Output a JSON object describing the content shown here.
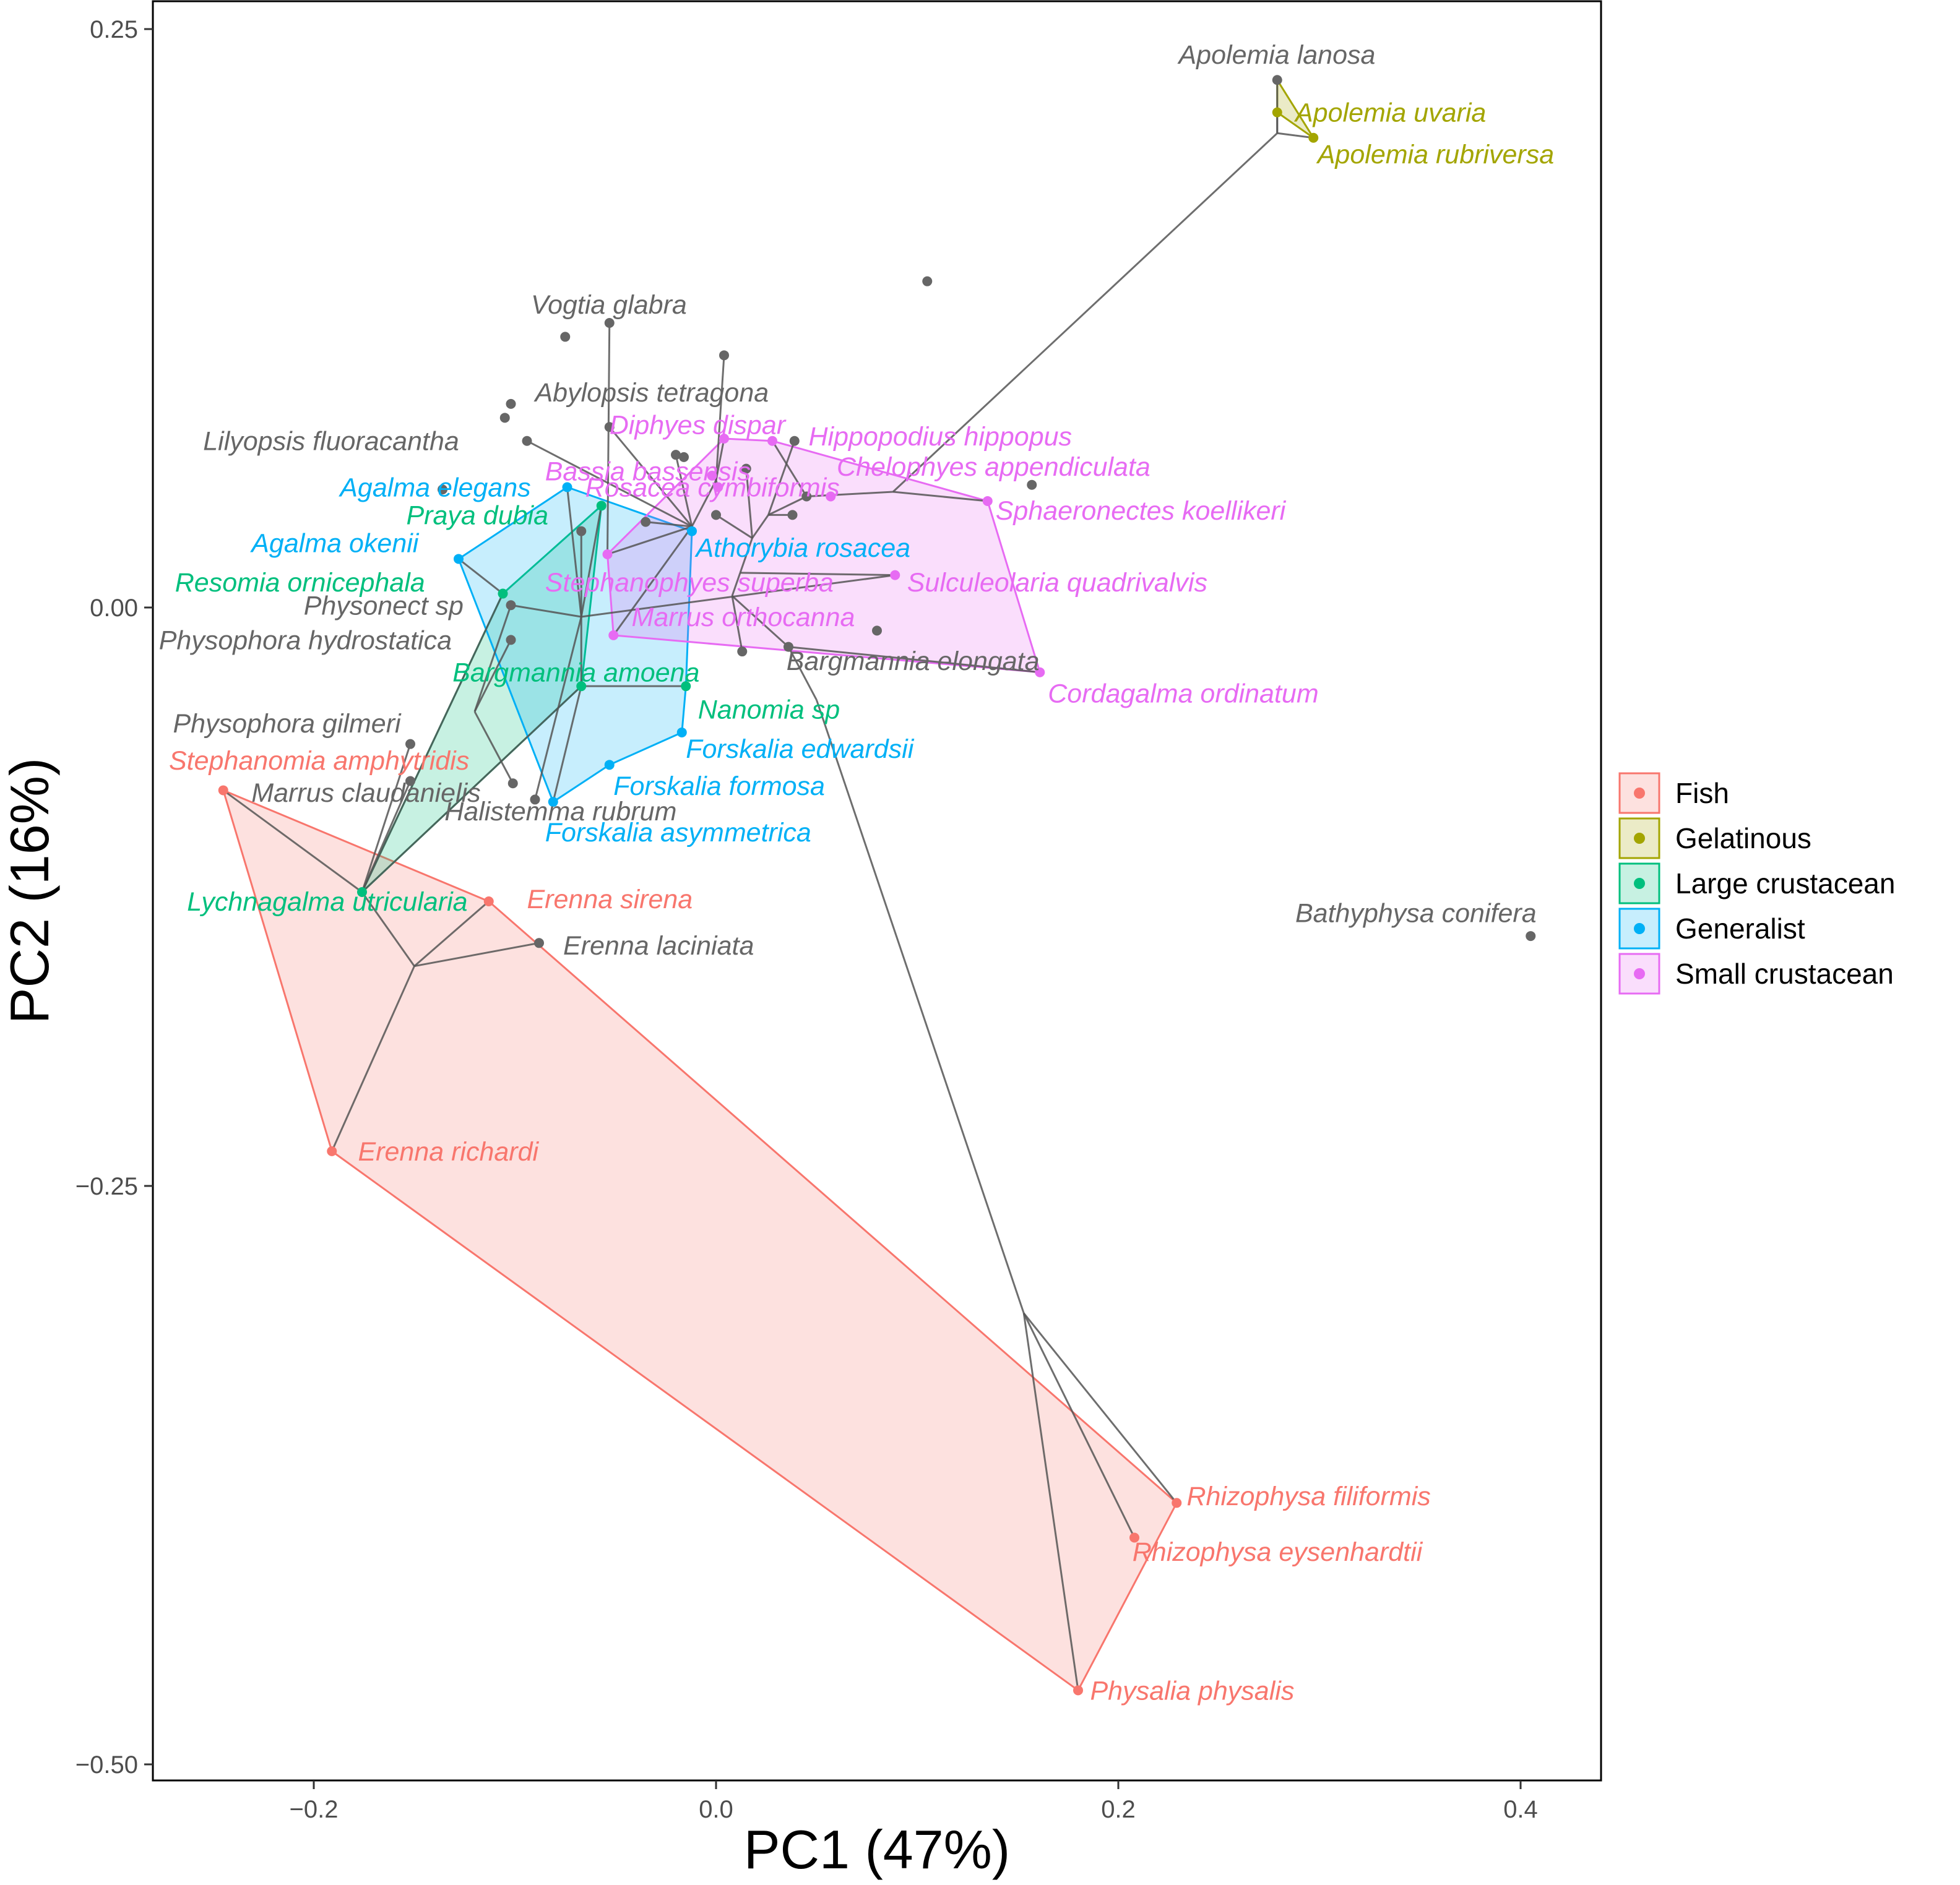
{
  "chart_data": {
    "type": "scatter",
    "xlabel": "PC1 (47%)",
    "ylabel": "PC2 (16%)",
    "xlim": [
      -0.28,
      0.44
    ],
    "ylim": [
      -0.5,
      0.25
    ],
    "x_ticks": [
      -0.2,
      0.0,
      0.2,
      0.4
    ],
    "y_ticks": [
      0.25,
      0.0,
      -0.25,
      -0.5
    ],
    "x_tick_labels": [
      "−0.2",
      "0.0",
      "0.2",
      "0.4"
    ],
    "y_tick_labels": [
      "0.25",
      "0.00",
      "−0.25",
      "−0.50"
    ],
    "grid": false,
    "legend_position": "right",
    "groups": [
      {
        "name": "Fish",
        "color": "#F8766D"
      },
      {
        "name": "Gelatinous",
        "color": "#A3A500"
      },
      {
        "name": "Large crustacean",
        "color": "#00BF7D"
      },
      {
        "name": "Generalist",
        "color": "#00B0F6"
      },
      {
        "name": "Small crustacean",
        "color": "#E76BF3"
      }
    ],
    "points": [
      {
        "label": "Apolemia lanosa",
        "x": 0.279,
        "y": 0.228,
        "group": "",
        "lx": 0.23,
        "ly": 0.239
      },
      {
        "label": "Apolemia uvaria",
        "x": 0.279,
        "y": 0.214,
        "group": "Gelatinous",
        "lx": 0.288,
        "ly": 0.214
      },
      {
        "label": "Apolemia rubriversa",
        "x": 0.297,
        "y": 0.203,
        "group": "Gelatinous",
        "lx": 0.299,
        "ly": 0.196
      },
      {
        "label": "Vogtia glabra",
        "x": -0.053,
        "y": 0.123,
        "group": "",
        "lx": -0.092,
        "ly": 0.131
      },
      {
        "label": "Abylopsis tetragona",
        "x": -0.053,
        "y": 0.078,
        "group": "",
        "lx": -0.09,
        "ly": 0.093
      },
      {
        "label": "Lilyopsis fluoracantha",
        "x": -0.094,
        "y": 0.072,
        "group": "",
        "lx": -0.255,
        "ly": 0.072
      },
      {
        "label": "Diphyes dispar",
        "x": 0.004,
        "y": 0.073,
        "group": "Small crustacean",
        "lx": -0.053,
        "ly": 0.079
      },
      {
        "label": "Hippopodius hippopus",
        "x": 0.028,
        "y": 0.072,
        "group": "Small crustacean",
        "lx": 0.046,
        "ly": 0.074
      },
      {
        "label": "Chelophyes appendiculata",
        "x": 0.057,
        "y": 0.048,
        "group": "Small crustacean",
        "lx": 0.06,
        "ly": 0.061
      },
      {
        "label": "Bassia bassensis",
        "x": -0.002,
        "y": 0.057,
        "group": "Small crustacean",
        "lx": -0.085,
        "ly": 0.059
      },
      {
        "label": "Rosacea cymbiformis",
        "x": 0.001,
        "y": 0.052,
        "group": "Small crustacean",
        "lx": -0.065,
        "ly": 0.052
      },
      {
        "label": "Agalma elegans",
        "x": -0.074,
        "y": 0.052,
        "group": "Generalist",
        "lx": -0.187,
        "ly": 0.052
      },
      {
        "label": "Sphaeronectes koellikeri",
        "x": 0.135,
        "y": 0.046,
        "group": "Small crustacean",
        "lx": 0.139,
        "ly": 0.042
      },
      {
        "label": "Praya dubia",
        "x": -0.057,
        "y": 0.044,
        "group": "Large crustacean",
        "lx": -0.154,
        "ly": 0.04
      },
      {
        "label": "Agalma okenii",
        "x": -0.128,
        "y": 0.021,
        "group": "Generalist",
        "lx": -0.231,
        "ly": 0.028
      },
      {
        "label": "Athorybia rosacea",
        "x": -0.012,
        "y": 0.033,
        "group": "Generalist",
        "lx": -0.01,
        "ly": 0.026
      },
      {
        "label": "Resomia ornicephala",
        "x": -0.106,
        "y": 0.006,
        "group": "Large crustacean",
        "lx": -0.269,
        "ly": 0.011
      },
      {
        "label": "Stephanophyes superba",
        "x": -0.054,
        "y": 0.023,
        "group": "Small crustacean",
        "lx": -0.085,
        "ly": 0.011
      },
      {
        "label": "Sulculeolaria quadrivalvis",
        "x": 0.089,
        "y": 0.014,
        "group": "Small crustacean",
        "lx": 0.095,
        "ly": 0.011
      },
      {
        "label": "Physonect sp",
        "x": -0.102,
        "y": 0.001,
        "group": "",
        "lx": -0.205,
        "ly": 0.001
      },
      {
        "label": "Marrus orthocanna",
        "x": -0.051,
        "y": -0.012,
        "group": "Small crustacean",
        "lx": -0.042,
        "ly": -0.004
      },
      {
        "label": "Physophora hydrostatica",
        "x": -0.102,
        "y": -0.014,
        "group": "",
        "lx": -0.277,
        "ly": -0.014
      },
      {
        "label": "Bargmannia elongata",
        "x": 0.036,
        "y": -0.017,
        "group": "",
        "lx": 0.035,
        "ly": -0.023
      },
      {
        "label": "Bargmannia amoena",
        "x": -0.067,
        "y": -0.034,
        "group": "Large crustacean",
        "lx": -0.131,
        "ly": -0.028
      },
      {
        "label": "Cordagalma ordinatum",
        "x": 0.161,
        "y": -0.028,
        "group": "Small crustacean",
        "lx": 0.165,
        "ly": -0.037
      },
      {
        "label": "Nanomia sp",
        "x": -0.015,
        "y": -0.034,
        "group": "Large crustacean",
        "lx": -0.009,
        "ly": -0.044
      },
      {
        "label": "Physophora gilmeri",
        "x": -0.152,
        "y": -0.059,
        "group": "",
        "lx": -0.27,
        "ly": -0.05
      },
      {
        "label": "Forskalia edwardsii",
        "x": -0.017,
        "y": -0.054,
        "group": "Generalist",
        "lx": -0.015,
        "ly": -0.061
      },
      {
        "label": "Stephanomia amphytridis",
        "x": -0.245,
        "y": -0.079,
        "group": "Fish",
        "lx": -0.272,
        "ly": -0.066
      },
      {
        "label": "Forskalia formosa",
        "x": -0.053,
        "y": -0.068,
        "group": "Generalist",
        "lx": -0.051,
        "ly": -0.077
      },
      {
        "label": "Marrus claudanielis",
        "x": -0.152,
        "y": -0.075,
        "group": "",
        "lx": -0.231,
        "ly": -0.08
      },
      {
        "label": "Halistemma rubrum",
        "x": -0.09,
        "y": -0.083,
        "group": "",
        "lx": -0.135,
        "ly": -0.088
      },
      {
        "label": "Forskalia asymmetrica",
        "x": -0.081,
        "y": -0.084,
        "group": "Generalist",
        "lx": -0.085,
        "ly": -0.097
      },
      {
        "label": "Lychnagalma utricularia",
        "x": -0.176,
        "y": -0.123,
        "group": "Large crustacean",
        "lx": -0.263,
        "ly": -0.127
      },
      {
        "label": "Erenna sirena",
        "x": -0.113,
        "y": -0.127,
        "group": "Fish",
        "lx": -0.094,
        "ly": -0.126
      },
      {
        "label": "Erenna laciniata",
        "x": -0.088,
        "y": -0.145,
        "group": "",
        "lx": -0.076,
        "ly": -0.146
      },
      {
        "label": "Bathyphysa conifera",
        "x": 0.405,
        "y": -0.142,
        "group": "",
        "lx": 0.288,
        "ly": -0.132
      },
      {
        "label": "Erenna richardi",
        "x": -0.191,
        "y": -0.235,
        "group": "Fish",
        "lx": -0.178,
        "ly": -0.235
      },
      {
        "label": "Rhizophysa filiformis",
        "x": 0.229,
        "y": -0.387,
        "group": "Fish",
        "lx": 0.234,
        "ly": -0.384
      },
      {
        "label": "Rhizophysa eysenhardtii",
        "x": 0.208,
        "y": -0.402,
        "group": "Fish",
        "lx": 0.207,
        "ly": -0.408
      },
      {
        "label": "Physalia physalis",
        "x": 0.18,
        "y": -0.468,
        "group": "Fish",
        "lx": 0.186,
        "ly": -0.468
      },
      {
        "label": "",
        "x": 0.105,
        "y": 0.141,
        "group": ""
      },
      {
        "label": "",
        "x": -0.075,
        "y": 0.117,
        "group": ""
      },
      {
        "label": "",
        "x": 0.004,
        "y": 0.109,
        "group": ""
      },
      {
        "label": "",
        "x": -0.102,
        "y": 0.088,
        "group": ""
      },
      {
        "label": "",
        "x": -0.105,
        "y": 0.082,
        "group": ""
      },
      {
        "label": "",
        "x": -0.02,
        "y": 0.066,
        "group": ""
      },
      {
        "label": "",
        "x": -0.016,
        "y": 0.065,
        "group": ""
      },
      {
        "label": "",
        "x": 0.015,
        "y": 0.06,
        "group": ""
      },
      {
        "label": "",
        "x": 0.039,
        "y": 0.072,
        "group": ""
      },
      {
        "label": "",
        "x": 0.157,
        "y": 0.053,
        "group": ""
      },
      {
        "label": "",
        "x": -0.136,
        "y": 0.051,
        "group": ""
      },
      {
        "label": "",
        "x": 0.045,
        "y": 0.048,
        "group": ""
      },
      {
        "label": "",
        "x": 0.0,
        "y": 0.04,
        "group": ""
      },
      {
        "label": "",
        "x": -0.067,
        "y": 0.033,
        "group": ""
      },
      {
        "label": "",
        "x": -0.035,
        "y": 0.037,
        "group": ""
      },
      {
        "label": "",
        "x": 0.038,
        "y": 0.04,
        "group": ""
      },
      {
        "label": "",
        "x": 0.08,
        "y": -0.01,
        "group": ""
      },
      {
        "label": "",
        "x": 0.013,
        "y": -0.019,
        "group": ""
      },
      {
        "label": "",
        "x": -0.101,
        "y": -0.076,
        "group": ""
      }
    ],
    "hulls": [
      {
        "group": "Fish",
        "points": [
          [
            -0.245,
            -0.079
          ],
          [
            -0.113,
            -0.127
          ],
          [
            0.229,
            -0.387
          ],
          [
            0.18,
            -0.468
          ],
          [
            -0.191,
            -0.235
          ]
        ]
      },
      {
        "group": "Large crustacean",
        "points": [
          [
            -0.106,
            0.006
          ],
          [
            -0.057,
            0.044
          ],
          [
            -0.067,
            -0.034
          ],
          [
            -0.176,
            -0.123
          ]
        ]
      },
      {
        "group": "Generalist",
        "points": [
          [
            -0.128,
            0.021
          ],
          [
            -0.074,
            0.052
          ],
          [
            -0.012,
            0.033
          ],
          [
            -0.015,
            -0.034
          ],
          [
            -0.017,
            -0.054
          ],
          [
            -0.053,
            -0.068
          ],
          [
            -0.081,
            -0.084
          ]
        ]
      },
      {
        "group": "Small crustacean",
        "points": [
          [
            -0.054,
            0.023
          ],
          [
            0.004,
            0.073
          ],
          [
            0.028,
            0.072
          ],
          [
            0.135,
            0.046
          ],
          [
            0.161,
            -0.028
          ],
          [
            -0.051,
            -0.012
          ]
        ]
      },
      {
        "group": "Gelatinous",
        "points": [
          [
            0.279,
            0.214
          ],
          [
            0.297,
            0.203
          ],
          [
            0.279,
            0.228
          ]
        ]
      }
    ],
    "tree_edges": [
      [
        [
          0.279,
          0.228
        ],
        [
          0.279,
          0.205
        ]
      ],
      [
        [
          0.279,
          0.214
        ],
        [
          0.279,
          0.205
        ]
      ],
      [
        [
          0.279,
          0.205
        ],
        [
          0.288,
          0.204
        ]
      ],
      [
        [
          0.288,
          0.204
        ],
        [
          0.297,
          0.203
        ]
      ],
      [
        [
          0.279,
          0.205
        ],
        [
          0.088,
          0.05
        ]
      ],
      [
        [
          0.088,
          0.05
        ],
        [
          0.135,
          0.046
        ]
      ],
      [
        [
          0.088,
          0.05
        ],
        [
          0.045,
          0.048
        ]
      ],
      [
        [
          0.045,
          0.048
        ],
        [
          0.028,
          0.072
        ]
      ],
      [
        [
          0.045,
          0.048
        ],
        [
          0.026,
          0.04
        ]
      ],
      [
        [
          0.026,
          0.04
        ],
        [
          0.039,
          0.072
        ]
      ],
      [
        [
          0.026,
          0.04
        ],
        [
          0.038,
          0.04
        ]
      ],
      [
        [
          0.026,
          0.04
        ],
        [
          0.018,
          0.03
        ]
      ],
      [
        [
          0.018,
          0.03
        ],
        [
          0.015,
          0.06
        ]
      ],
      [
        [
          0.018,
          0.03
        ],
        [
          0.0,
          0.04
        ]
      ],
      [
        [
          0.018,
          0.03
        ],
        [
          0.012,
          0.015
        ]
      ],
      [
        [
          0.012,
          0.015
        ],
        [
          0.089,
          0.014
        ]
      ],
      [
        [
          0.012,
          0.015
        ],
        [
          0.008,
          0.005
        ]
      ],
      [
        [
          0.008,
          0.005
        ],
        [
          0.013,
          -0.019
        ]
      ],
      [
        [
          0.008,
          0.005
        ],
        [
          0.036,
          -0.017
        ]
      ],
      [
        [
          0.036,
          -0.017
        ],
        [
          0.161,
          -0.028
        ]
      ],
      [
        [
          0.036,
          -0.017
        ],
        [
          0.05,
          -0.04
        ]
      ],
      [
        [
          0.05,
          -0.04
        ],
        [
          0.153,
          -0.305
        ]
      ],
      [
        [
          0.153,
          -0.305
        ],
        [
          0.229,
          -0.387
        ]
      ],
      [
        [
          0.153,
          -0.305
        ],
        [
          0.18,
          -0.468
        ]
      ],
      [
        [
          0.153,
          -0.305
        ],
        [
          0.208,
          -0.402
        ]
      ],
      [
        [
          0.004,
          0.073
        ],
        [
          0.0,
          0.055
        ]
      ],
      [
        [
          0.0,
          0.055
        ],
        [
          -0.002,
          0.057
        ]
      ],
      [
        [
          0.0,
          0.055
        ],
        [
          0.001,
          0.052
        ]
      ],
      [
        [
          0.0,
          0.055
        ],
        [
          0.004,
          0.109
        ]
      ],
      [
        [
          0.0,
          0.055
        ],
        [
          -0.012,
          0.035
        ]
      ],
      [
        [
          -0.012,
          0.035
        ],
        [
          -0.053,
          0.078
        ]
      ],
      [
        [
          -0.012,
          0.035
        ],
        [
          -0.035,
          0.037
        ]
      ],
      [
        [
          -0.012,
          0.035
        ],
        [
          -0.02,
          0.066
        ]
      ],
      [
        [
          -0.02,
          0.066
        ],
        [
          -0.016,
          0.065
        ]
      ],
      [
        [
          -0.012,
          0.035
        ],
        [
          -0.054,
          0.023
        ]
      ],
      [
        [
          -0.054,
          0.023
        ],
        [
          -0.053,
          0.123
        ]
      ],
      [
        [
          -0.012,
          0.035
        ],
        [
          -0.051,
          -0.012
        ]
      ],
      [
        [
          -0.012,
          0.035
        ],
        [
          -0.094,
          0.072
        ]
      ],
      [
        [
          -0.102,
          0.001
        ],
        [
          -0.067,
          -0.004
        ]
      ],
      [
        [
          -0.067,
          -0.004
        ],
        [
          0.089,
          0.014
        ]
      ],
      [
        [
          -0.067,
          -0.004
        ],
        [
          -0.074,
          0.052
        ]
      ],
      [
        [
          -0.067,
          -0.004
        ],
        [
          -0.067,
          0.033
        ]
      ],
      [
        [
          -0.067,
          -0.004
        ],
        [
          -0.057,
          0.044
        ]
      ],
      [
        [
          -0.067,
          -0.004
        ],
        [
          -0.067,
          -0.034
        ]
      ],
      [
        [
          -0.067,
          -0.004
        ],
        [
          -0.09,
          -0.083
        ]
      ],
      [
        [
          -0.067,
          -0.034
        ],
        [
          -0.015,
          -0.034
        ]
      ],
      [
        [
          -0.067,
          -0.034
        ],
        [
          -0.081,
          -0.084
        ]
      ],
      [
        [
          -0.067,
          -0.034
        ],
        [
          -0.176,
          -0.123
        ]
      ],
      [
        [
          -0.176,
          -0.123
        ],
        [
          -0.152,
          -0.075
        ]
      ],
      [
        [
          -0.176,
          -0.123
        ],
        [
          -0.245,
          -0.079
        ]
      ],
      [
        [
          -0.176,
          -0.123
        ],
        [
          -0.106,
          0.006
        ]
      ],
      [
        [
          -0.176,
          -0.123
        ],
        [
          -0.152,
          -0.059
        ]
      ],
      [
        [
          -0.12,
          -0.045
        ],
        [
          -0.102,
          -0.014
        ]
      ],
      [
        [
          -0.12,
          -0.045
        ],
        [
          -0.101,
          -0.076
        ]
      ],
      [
        [
          -0.12,
          -0.045
        ],
        [
          -0.102,
          0.001
        ]
      ],
      [
        [
          -0.128,
          0.021
        ],
        [
          -0.106,
          0.006
        ]
      ],
      [
        [
          -0.15,
          -0.155
        ],
        [
          -0.113,
          -0.127
        ]
      ],
      [
        [
          -0.15,
          -0.155
        ],
        [
          -0.088,
          -0.145
        ]
      ],
      [
        [
          -0.15,
          -0.155
        ],
        [
          -0.191,
          -0.235
        ]
      ],
      [
        [
          -0.15,
          -0.155
        ],
        [
          -0.176,
          -0.123
        ]
      ]
    ]
  }
}
